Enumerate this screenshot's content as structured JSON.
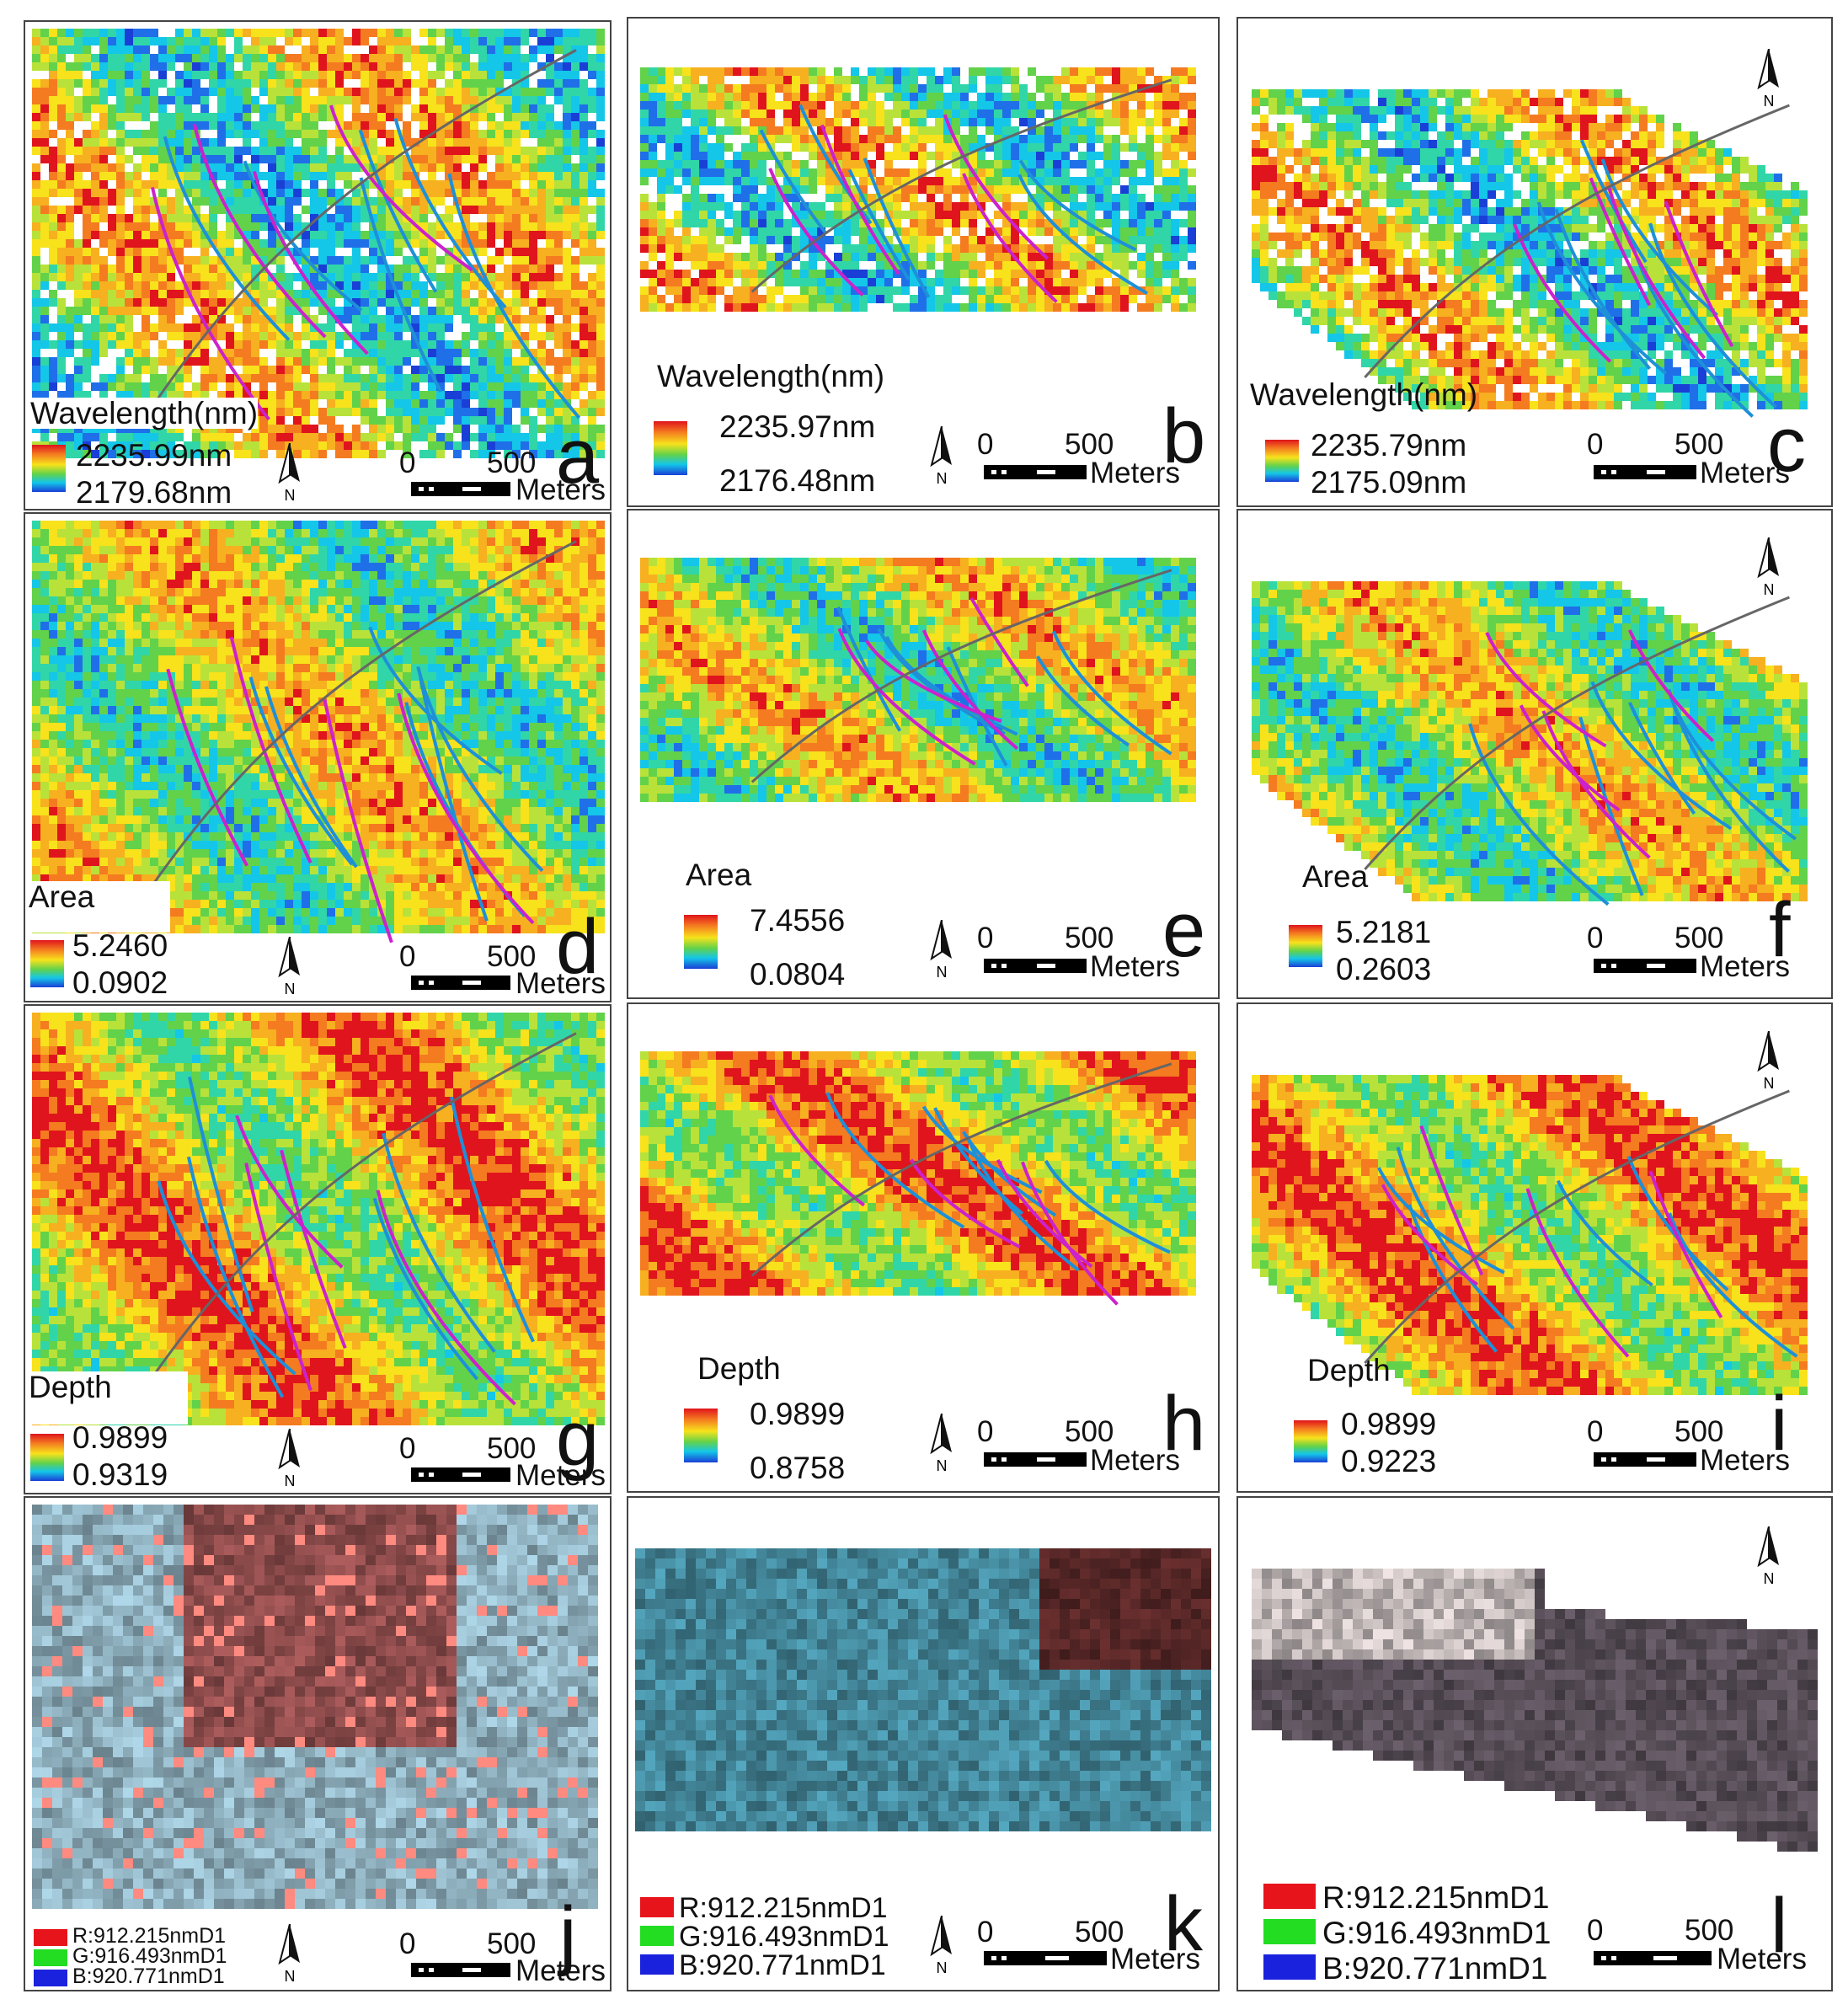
{
  "figure": {
    "panels": [
      {
        "id": "a",
        "variable_label": "Wavelength(nm)",
        "legend_max": "2235.99nm",
        "legend_min": "2179.68nm",
        "north": "N",
        "scale_0": "0",
        "scale_500": "500",
        "scale_unit": "Meters",
        "colors": [
          "#e0141c",
          "#f47b20",
          "#f7e21c",
          "#62d24a",
          "#14c6e8",
          "#1a3fd6"
        ]
      },
      {
        "id": "b",
        "variable_label": "Wavelength(nm)",
        "legend_max": "2235.97nm",
        "legend_min": "2176.48nm",
        "north": "N",
        "scale_0": "0",
        "scale_500": "500",
        "scale_unit": "Meters"
      },
      {
        "id": "c",
        "variable_label": "Wavelength(nm)",
        "legend_max": "2235.79nm",
        "legend_min": "2175.09nm",
        "north": "N",
        "scale_0": "0",
        "scale_500": "500",
        "scale_unit": "Meters"
      },
      {
        "id": "d",
        "variable_label": "Area",
        "legend_max": "5.2460",
        "legend_min": "0.0902",
        "north": "N",
        "scale_0": "0",
        "scale_500": "500",
        "scale_unit": "Meters"
      },
      {
        "id": "e",
        "variable_label": "Area",
        "legend_max": "7.4556",
        "legend_min": "0.0804",
        "north": "N",
        "scale_0": "0",
        "scale_500": "500",
        "scale_unit": "Meters"
      },
      {
        "id": "f",
        "variable_label": "Area",
        "legend_max": "5.2181",
        "legend_min": "0.2603",
        "north": "N",
        "scale_0": "0",
        "scale_500": "500",
        "scale_unit": "Meters"
      },
      {
        "id": "g",
        "variable_label": "Depth",
        "legend_max": "0.9899",
        "legend_min": "0.9319",
        "north": "N",
        "scale_0": "0",
        "scale_500": "500",
        "scale_unit": "Meters"
      },
      {
        "id": "h",
        "variable_label": "Depth",
        "legend_max": "0.9899",
        "legend_min": "0.8758",
        "north": "N",
        "scale_0": "0",
        "scale_500": "500",
        "scale_unit": "Meters"
      },
      {
        "id": "i",
        "variable_label": "Depth",
        "legend_max": "0.9899",
        "legend_min": "0.9223",
        "north": "N",
        "scale_0": "0",
        "scale_500": "500",
        "scale_unit": "Meters"
      },
      {
        "id": "j",
        "band_r": "R:912.215nmD1",
        "band_g": "G:916.493nmD1",
        "band_b": "B:920.771nmD1",
        "north": "N",
        "scale_0": "0",
        "scale_500": "500",
        "scale_unit": "Meters"
      },
      {
        "id": "k",
        "band_r": "R:912.215nmD1",
        "band_g": "G:916.493nmD1",
        "band_b": "B:920.771nmD1",
        "north": "N",
        "scale_0": "0",
        "scale_500": "500",
        "scale_unit": "Meters"
      },
      {
        "id": "l",
        "band_r": "R:912.215nmD1",
        "band_g": "G:916.493nmD1",
        "band_b": "B:920.771nmD1",
        "north": "",
        "scale_0": "0",
        "scale_500": "500",
        "scale_unit": "Meters"
      }
    ],
    "line_colors": {
      "faults": "#1e90d8",
      "highlight": "#cc22cc",
      "boundary": "#666666"
    },
    "rgb_colors": {
      "red": "#e8141c",
      "green": "#22dd22",
      "blue": "#1a22dd"
    }
  }
}
